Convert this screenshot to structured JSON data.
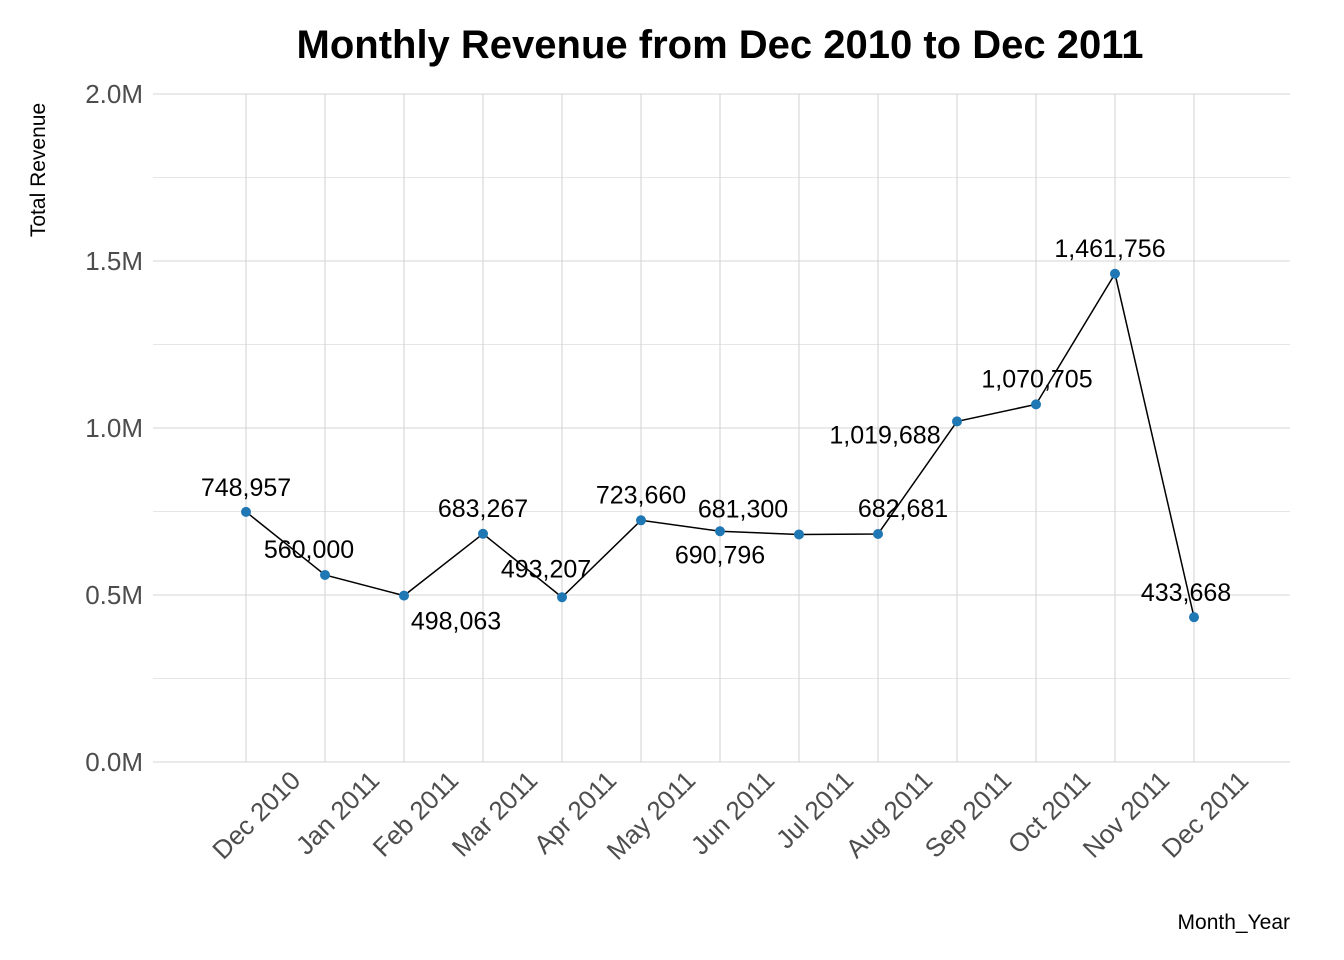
{
  "chart_data": {
    "type": "line",
    "title": "Monthly Revenue from Dec 2010 to Dec 2011",
    "xlabel": "Month_Year",
    "ylabel": "Total Revenue",
    "categories": [
      "Dec 2010",
      "Jan 2011",
      "Feb 2011",
      "Mar 2011",
      "Apr 2011",
      "May 2011",
      "Jun 2011",
      "Jul 2011",
      "Aug 2011",
      "Sep 2011",
      "Oct 2011",
      "Nov 2011",
      "Dec 2011"
    ],
    "values": [
      748957,
      560000,
      498063,
      683267,
      493207,
      723660,
      690796,
      681300,
      682681,
      1019688,
      1070705,
      1461756,
      433668
    ],
    "data_labels": [
      "748,957",
      "560,000",
      "498,063",
      "683,267",
      "493,207",
      "723,660",
      "690,796",
      "681,300",
      "682,681",
      "1,019,688",
      "1,070,705",
      "1,461,756",
      "433,668"
    ],
    "ylim": [
      0,
      2000000
    ],
    "y_ticks": [
      0,
      500000,
      1000000,
      1500000,
      2000000
    ],
    "y_tick_labels": [
      "0.0M",
      "0.5M",
      "1.0M",
      "1.5M",
      "2.0M"
    ],
    "grid": true,
    "legend": "none",
    "colors": {
      "line": "#000000",
      "point": "#1f77b4"
    }
  }
}
